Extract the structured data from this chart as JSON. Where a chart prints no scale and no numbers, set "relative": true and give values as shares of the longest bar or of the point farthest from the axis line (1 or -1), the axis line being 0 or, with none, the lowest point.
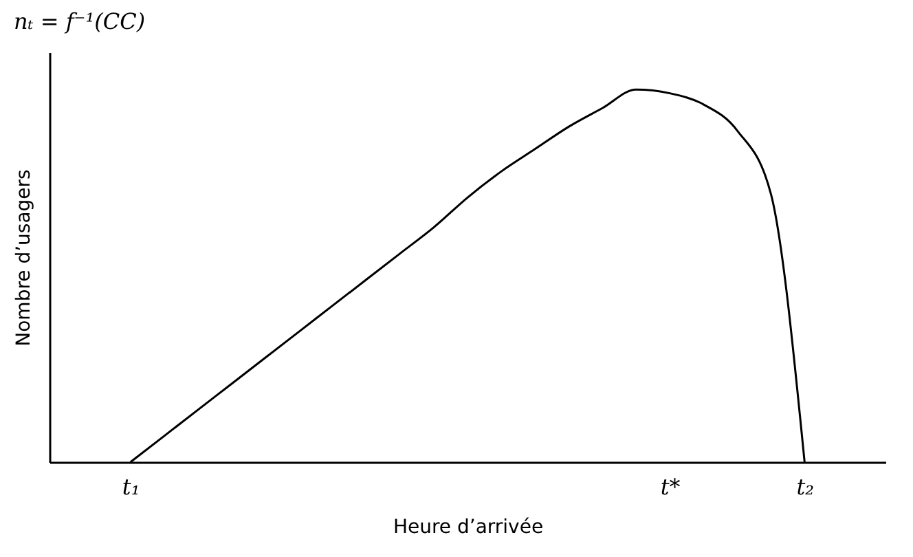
{
  "chart_data": {
    "type": "line",
    "title": "nₜ = f⁻¹(CC)",
    "xlabel": "Heure d’arrivée",
    "ylabel": "Nombre d’usagers",
    "relative": true,
    "categories": [
      null,
      null,
      "t₁",
      null,
      null,
      null,
      null,
      null,
      null,
      null,
      null,
      null,
      null,
      null,
      null,
      null,
      null,
      null,
      "t*",
      null,
      null,
      null,
      "t₂",
      null,
      null
    ],
    "series": [
      {
        "color": "#000000",
        "values": [
          null,
          null,
          0,
          0.07,
          0.14,
          0.21,
          0.28,
          0.35,
          0.42,
          0.49,
          0.56,
          0.63,
          0.71,
          0.78,
          0.84,
          0.9,
          0.95,
          1,
          0.99,
          0.96,
          0.89,
          0.72,
          0,
          null,
          null
        ]
      }
    ],
    "grid": false,
    "marker": "none",
    "line_style": "solid"
  }
}
